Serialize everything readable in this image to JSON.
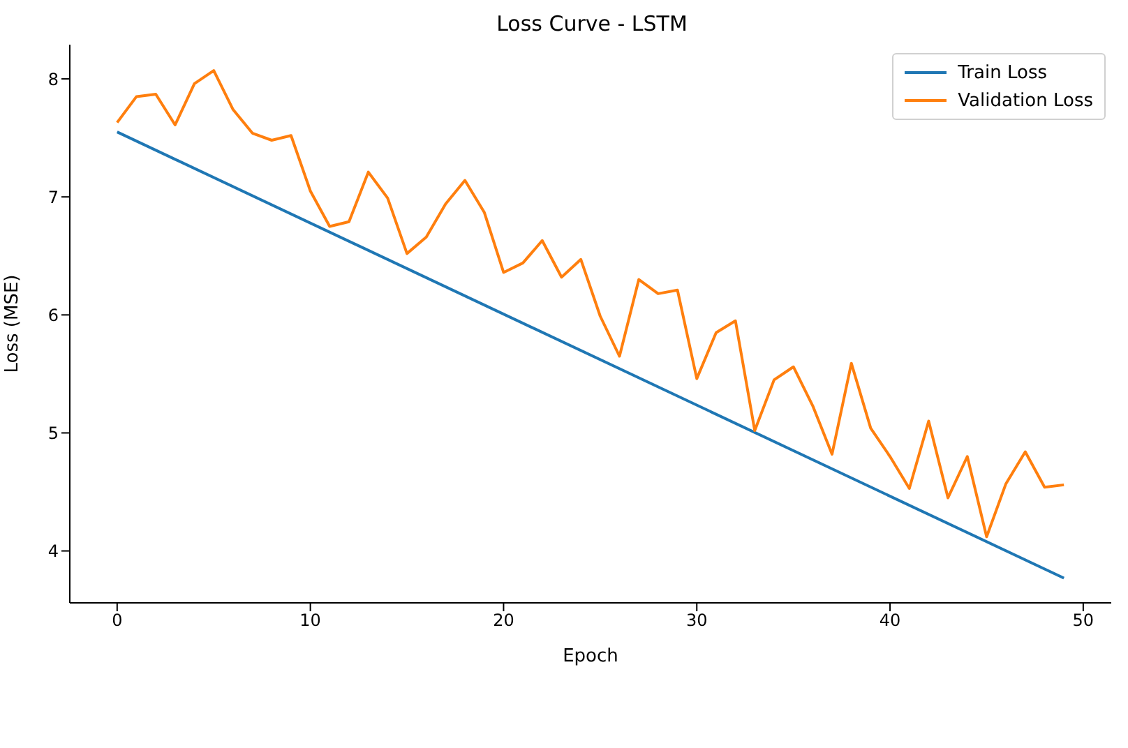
{
  "chart_data": {
    "type": "line",
    "title": "Loss Curve - LSTM",
    "xlabel": "Epoch",
    "ylabel": "Loss (MSE)",
    "xlim": [
      -2.45,
      51.45
    ],
    "xticks": [
      0,
      10,
      20,
      30,
      40,
      50
    ],
    "ylim": [
      3.56,
      8.29
    ],
    "yticks": [
      4,
      5,
      6,
      7,
      8
    ],
    "legend": "top right",
    "series": [
      {
        "name": "Train Loss",
        "color": "#1f77b4",
        "x": [
          0,
          49
        ],
        "values": [
          7.55,
          3.77
        ]
      },
      {
        "name": "Validation Loss",
        "color": "#ff7f0e",
        "x": [
          0,
          1,
          2,
          3,
          4,
          5,
          6,
          7,
          8,
          9,
          10,
          11,
          12,
          13,
          14,
          15,
          16,
          17,
          18,
          19,
          20,
          21,
          22,
          23,
          24,
          25,
          26,
          27,
          28,
          29,
          30,
          31,
          32,
          33,
          34,
          35,
          36,
          37,
          38,
          39,
          40,
          41,
          42,
          43,
          44,
          45,
          46,
          47,
          48,
          49
        ],
        "values": [
          7.63,
          7.85,
          7.87,
          7.61,
          7.96,
          8.07,
          7.74,
          7.54,
          7.48,
          7.52,
          7.05,
          6.75,
          6.79,
          7.21,
          6.99,
          6.52,
          6.66,
          6.94,
          7.14,
          6.87,
          6.36,
          6.44,
          6.63,
          6.32,
          6.47,
          5.99,
          5.65,
          6.3,
          6.18,
          6.21,
          5.46,
          5.85,
          5.95,
          5.02,
          5.45,
          5.56,
          5.23,
          4.82,
          5.59,
          5.04,
          4.8,
          4.53,
          5.1,
          4.45,
          4.8,
          4.12,
          4.57,
          4.84,
          4.54,
          4.56
        ]
      }
    ]
  }
}
